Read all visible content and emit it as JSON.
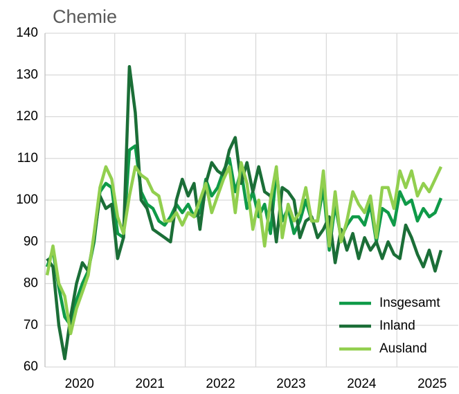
{
  "chart_data": {
    "type": "line",
    "title": "Chemie",
    "categories": [
      null,
      null,
      null,
      null,
      null,
      "2020",
      null,
      null,
      null,
      null,
      null,
      null,
      null,
      null,
      null,
      null,
      null,
      "2021",
      null,
      null,
      null,
      null,
      null,
      null,
      null,
      null,
      null,
      null,
      null,
      "2022",
      null,
      null,
      null,
      null,
      null,
      null,
      null,
      null,
      null,
      null,
      null,
      "2023",
      null,
      null,
      null,
      null,
      null,
      null,
      null,
      null,
      null,
      null,
      null,
      "2024",
      null,
      null,
      null,
      null,
      null,
      null,
      null,
      null,
      null,
      null,
      null,
      "2025",
      null,
      null
    ],
    "series": [
      {
        "name": "Insgesamt",
        "color": "#0f9a48",
        "values": [
          84,
          88,
          79,
          72,
          70,
          76,
          80,
          83,
          90,
          102,
          104,
          103,
          92,
          91,
          112,
          113,
          102,
          99,
          98,
          95,
          94,
          96,
          99,
          97,
          99,
          96,
          97,
          105,
          101,
          103,
          107,
          110,
          102,
          107,
          98,
          102,
          96,
          99,
          92,
          107,
          95,
          98,
          92,
          95,
          100,
          95,
          95,
          103,
          88,
          99,
          91,
          94,
          96,
          96,
          94,
          99,
          90,
          98,
          97,
          94,
          102,
          99,
          100,
          95,
          98,
          96,
          97,
          100.5
        ]
      },
      {
        "name": "Inland",
        "color": "#1b6e37",
        "values": [
          86,
          84,
          70,
          62,
          72,
          80,
          85,
          83,
          91,
          101,
          98,
          99,
          86,
          91,
          132,
          121,
          100,
          98,
          93,
          92,
          91,
          90,
          100,
          105,
          101,
          104,
          93,
          104,
          109,
          107,
          106,
          112,
          115,
          104,
          109,
          102,
          108,
          102,
          101,
          90,
          103,
          102,
          100,
          91,
          95,
          96,
          91,
          93,
          96,
          85,
          93,
          88,
          92,
          86,
          91,
          88,
          90,
          86,
          90,
          87,
          86,
          94,
          91,
          87,
          84,
          88,
          83,
          88
        ]
      },
      {
        "name": "Ausland",
        "color": "#92cf4f",
        "values": [
          82,
          89,
          80,
          77,
          68,
          74,
          78,
          82,
          92,
          103,
          108,
          105,
          96,
          92,
          101,
          108,
          106,
          105,
          102,
          101,
          95,
          95,
          97,
          94,
          97,
          96,
          100,
          104,
          97,
          101,
          105,
          108,
          97,
          109,
          104,
          93,
          100,
          89,
          100,
          108,
          91,
          99,
          95,
          97,
          103,
          95,
          95,
          107,
          89,
          102,
          90,
          95,
          102,
          99,
          97,
          101,
          91,
          103,
          103,
          98,
          107,
          103,
          107,
          101,
          104,
          102,
          105,
          108
        ]
      }
    ],
    "ylim": [
      60,
      140
    ],
    "yticks": [
      60,
      70,
      80,
      90,
      100,
      110,
      120,
      130,
      140
    ],
    "grid": true,
    "legend": "lower right"
  }
}
